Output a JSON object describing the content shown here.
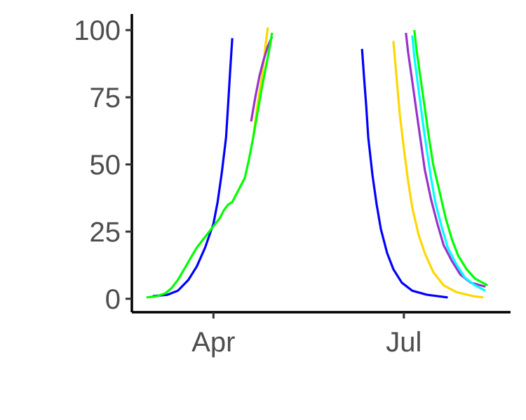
{
  "chart_data": {
    "type": "line",
    "title": "",
    "xlabel": "",
    "ylabel": "",
    "x_axis": {
      "kind": "date",
      "range": [
        "2021-02-21",
        "2021-08-21"
      ],
      "ticks": [
        {
          "date": "2021-04-01",
          "label": "Apr"
        },
        {
          "date": "2021-07-01",
          "label": "Jul"
        }
      ]
    },
    "y_axis": {
      "range": [
        -5,
        106
      ],
      "ticks": [
        0,
        25,
        50,
        75,
        100
      ]
    },
    "grid": false,
    "legend": "none",
    "series": [
      {
        "color": "#0000ff",
        "points": [
          [
            "2021-03-03",
            1
          ],
          [
            "2021-03-10",
            1.5
          ],
          [
            "2021-03-15",
            3
          ],
          [
            "2021-03-20",
            7
          ],
          [
            "2021-03-24",
            12
          ],
          [
            "2021-03-28",
            19
          ],
          [
            "2021-04-01",
            28
          ],
          [
            "2021-04-03",
            36
          ],
          [
            "2021-04-05",
            47
          ],
          [
            "2021-04-07",
            60
          ],
          [
            "2021-04-08",
            72
          ],
          [
            "2021-04-09",
            85
          ],
          [
            "2021-04-10",
            97
          ]
        ]
      },
      {
        "color": "#0000ff",
        "points": [
          [
            "2021-06-11",
            93
          ],
          [
            "2021-06-12",
            82
          ],
          [
            "2021-06-13",
            72
          ],
          [
            "2021-06-14",
            60
          ],
          [
            "2021-06-16",
            46
          ],
          [
            "2021-06-18",
            35
          ],
          [
            "2021-06-20",
            26
          ],
          [
            "2021-06-23",
            17
          ],
          [
            "2021-06-26",
            11
          ],
          [
            "2021-06-30",
            6
          ],
          [
            "2021-07-05",
            3
          ],
          [
            "2021-07-12",
            1.5
          ],
          [
            "2021-07-22",
            0.5
          ]
        ]
      },
      {
        "color": "#ffd700",
        "points": [
          [
            "2021-04-20",
            60
          ],
          [
            "2021-04-22",
            72
          ],
          [
            "2021-04-24",
            82
          ],
          [
            "2021-04-25",
            88
          ],
          [
            "2021-04-26",
            95
          ],
          [
            "2021-04-27",
            101
          ]
        ]
      },
      {
        "color": "#ffd700",
        "points": [
          [
            "2021-06-26",
            96
          ],
          [
            "2021-06-27",
            87
          ],
          [
            "2021-06-28",
            78
          ],
          [
            "2021-06-29",
            69
          ],
          [
            "2021-07-01",
            56
          ],
          [
            "2021-07-03",
            44
          ],
          [
            "2021-07-05",
            34
          ],
          [
            "2021-07-08",
            24
          ],
          [
            "2021-07-11",
            17
          ],
          [
            "2021-07-15",
            10
          ],
          [
            "2021-07-20",
            5
          ],
          [
            "2021-07-26",
            2.5
          ],
          [
            "2021-08-03",
            1
          ],
          [
            "2021-08-08",
            0.5
          ]
        ]
      },
      {
        "color": "#9932cc",
        "points": [
          [
            "2021-04-19",
            66
          ],
          [
            "2021-04-21",
            75
          ],
          [
            "2021-04-23",
            83
          ],
          [
            "2021-04-25",
            89
          ],
          [
            "2021-04-27",
            94
          ],
          [
            "2021-04-29",
            97.5
          ]
        ]
      },
      {
        "color": "#9932cc",
        "points": [
          [
            "2021-07-02",
            99
          ],
          [
            "2021-07-03",
            92
          ],
          [
            "2021-07-05",
            81
          ],
          [
            "2021-07-07",
            70
          ],
          [
            "2021-07-09",
            59
          ],
          [
            "2021-07-11",
            48
          ],
          [
            "2021-07-14",
            37
          ],
          [
            "2021-07-17",
            28
          ],
          [
            "2021-07-20",
            20
          ],
          [
            "2021-07-24",
            14
          ],
          [
            "2021-07-28",
            9
          ],
          [
            "2021-08-02",
            6
          ],
          [
            "2021-08-09",
            4.5
          ]
        ]
      },
      {
        "color": "#00ffff",
        "points": [
          [
            "2021-07-05",
            98
          ],
          [
            "2021-07-06",
            90
          ],
          [
            "2021-07-08",
            78
          ],
          [
            "2021-07-10",
            66
          ],
          [
            "2021-07-12",
            55
          ],
          [
            "2021-07-14",
            45
          ],
          [
            "2021-07-16",
            36
          ],
          [
            "2021-07-19",
            27
          ],
          [
            "2021-07-22",
            19
          ],
          [
            "2021-07-26",
            13
          ],
          [
            "2021-07-30",
            8
          ],
          [
            "2021-08-04",
            5
          ],
          [
            "2021-08-09",
            3
          ]
        ]
      },
      {
        "color": "#00ff00",
        "points": [
          [
            "2021-02-28",
            0.5
          ],
          [
            "2021-03-05",
            1
          ],
          [
            "2021-03-09",
            2
          ],
          [
            "2021-03-12",
            4
          ],
          [
            "2021-03-15",
            7
          ],
          [
            "2021-03-18",
            11
          ],
          [
            "2021-03-21",
            15
          ],
          [
            "2021-03-24",
            19
          ],
          [
            "2021-03-27",
            22
          ],
          [
            "2021-03-30",
            25
          ],
          [
            "2021-04-02",
            28
          ],
          [
            "2021-04-04",
            30
          ],
          [
            "2021-04-06",
            33
          ],
          [
            "2021-04-08",
            35
          ],
          [
            "2021-04-10",
            36
          ],
          [
            "2021-04-12",
            39
          ],
          [
            "2021-04-14",
            42
          ],
          [
            "2021-04-16",
            45
          ],
          [
            "2021-04-18",
            52
          ],
          [
            "2021-04-20",
            60
          ],
          [
            "2021-04-22",
            69
          ],
          [
            "2021-04-24",
            78
          ],
          [
            "2021-04-26",
            86
          ],
          [
            "2021-04-28",
            94
          ],
          [
            "2021-04-29",
            99
          ]
        ]
      },
      {
        "color": "#00ff00",
        "points": [
          [
            "2021-07-06",
            100
          ],
          [
            "2021-07-07",
            93
          ],
          [
            "2021-07-09",
            82
          ],
          [
            "2021-07-11",
            71
          ],
          [
            "2021-07-13",
            60
          ],
          [
            "2021-07-15",
            50
          ],
          [
            "2021-07-18",
            40
          ],
          [
            "2021-07-21",
            30
          ],
          [
            "2021-07-24",
            22
          ],
          [
            "2021-07-27",
            16
          ],
          [
            "2021-07-31",
            11
          ],
          [
            "2021-08-04",
            7.5
          ],
          [
            "2021-08-10",
            5
          ]
        ]
      }
    ]
  }
}
